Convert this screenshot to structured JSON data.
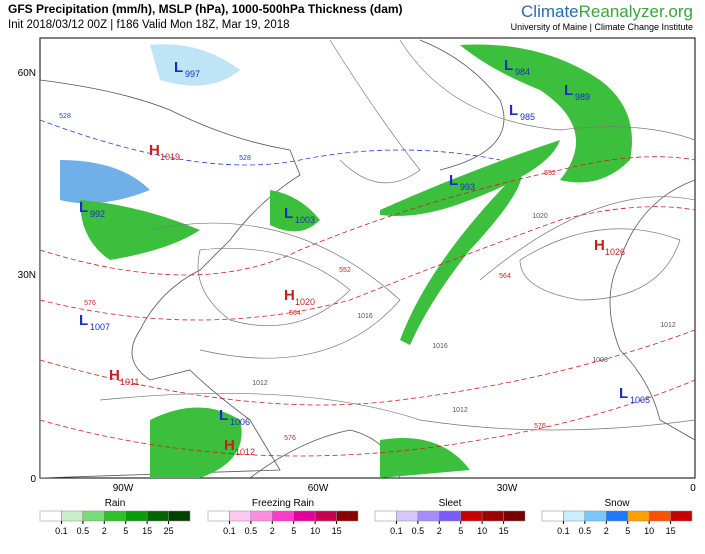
{
  "header": {
    "title": "GFS Precipitation (mm/h), MSLP (hPa), 1000-500hPa Thickness (dam)",
    "subtitle": "Init 2018/03/12 00Z | f186 Valid Mon 18Z, Mar 19, 2018",
    "brand": [
      "Climate",
      "Reanalyzer",
      ".org"
    ],
    "affiliation": "University of Maine | Climate Change Institute"
  },
  "map": {
    "lat_labels": [
      "60N",
      "30N",
      "0"
    ],
    "lon_labels": [
      "90W",
      "60W",
      "30W",
      "0"
    ],
    "centers": [
      {
        "letter": "L",
        "value": "997"
      },
      {
        "letter": "H",
        "value": "1019"
      },
      {
        "letter": "L",
        "value": "992"
      },
      {
        "letter": "L",
        "value": "1003"
      },
      {
        "letter": "H",
        "value": "1020"
      },
      {
        "letter": "L",
        "value": "1007"
      },
      {
        "letter": "H",
        "value": "1011"
      },
      {
        "letter": "L",
        "value": "1006"
      },
      {
        "letter": "H",
        "value": "1012"
      },
      {
        "letter": "L",
        "value": "984"
      },
      {
        "letter": "L",
        "value": "985"
      },
      {
        "letter": "L",
        "value": "989"
      },
      {
        "letter": "L",
        "value": "993"
      },
      {
        "letter": "H",
        "value": "1026"
      },
      {
        "letter": "L",
        "value": "1005"
      }
    ],
    "contour_labels": [
      "528",
      "528",
      "552",
      "564",
      "576",
      "576",
      "564",
      "552",
      "576",
      "1012",
      "1016",
      "1020",
      "1016",
      "1012",
      "1008",
      "1012"
    ]
  },
  "legend": [
    {
      "title": "Rain",
      "ticks": [
        0.1,
        0.5,
        2,
        5,
        15,
        25
      ],
      "colors": [
        "#ffffff",
        "#c8f0c8",
        "#78dc78",
        "#2cc02c",
        "#0a9a0a",
        "#006400",
        "#004000"
      ]
    },
    {
      "title": "Freezing Rain",
      "ticks": [
        0.1,
        0.5,
        2,
        5,
        10,
        15
      ],
      "colors": [
        "#ffffff",
        "#ffc8f0",
        "#ff8cdc",
        "#ff3cc8",
        "#e6009a",
        "#c80050",
        "#8c0000"
      ]
    },
    {
      "title": "Sleet",
      "ticks": [
        0.1,
        0.5,
        2,
        5,
        10,
        15
      ],
      "colors": [
        "#ffffff",
        "#d8c8ff",
        "#a68cff",
        "#7a5aff",
        "#c80000",
        "#a00000",
        "#780000"
      ]
    },
    {
      "title": "Snow",
      "ticks": [
        0.1,
        0.5,
        2,
        5,
        10,
        15
      ],
      "colors": [
        "#ffffff",
        "#c8f0ff",
        "#78c8ff",
        "#1e78ff",
        "#ffa000",
        "#ff5000",
        "#c80000"
      ]
    }
  ]
}
